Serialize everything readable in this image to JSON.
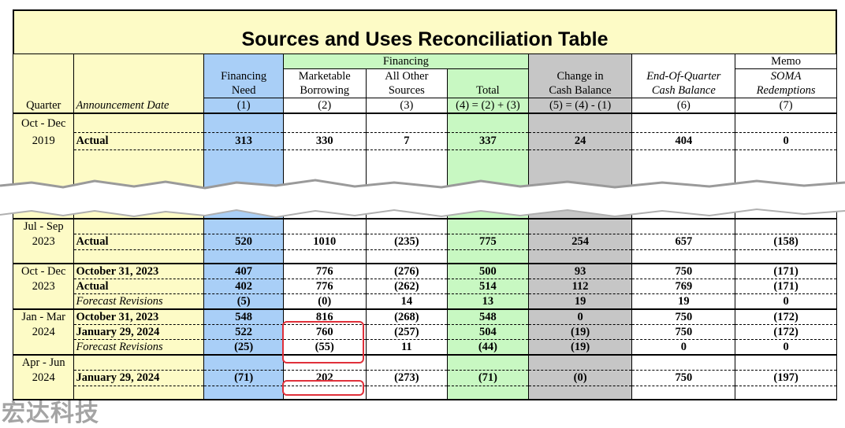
{
  "title": "Sources and Uses Reconciliation Table",
  "groups": {
    "financing": "Financing",
    "memo": "Memo"
  },
  "columns": {
    "quarter": "Quarter",
    "date": "Announcement Date",
    "c1": [
      "Financing",
      "Need",
      "(1)"
    ],
    "c2": [
      "Marketable",
      "Borrowing",
      "(2)"
    ],
    "c3": [
      "All Other",
      "Sources",
      "(3)"
    ],
    "c4": [
      "",
      "Total",
      "(4) = (2) + (3)"
    ],
    "c5": [
      "Change in",
      "Cash Balance",
      "(5) = (4) - (1)"
    ],
    "c6": [
      "End-Of-Quarter",
      "Cash Balance",
      "(6)"
    ],
    "c7": [
      "SOMA",
      "Redemptions",
      "(7)"
    ]
  },
  "rows": {
    "oct2019": {
      "q1": "Oct - Dec",
      "q2": "2019",
      "date": "Actual",
      "v": [
        "313",
        "330",
        "7",
        "337",
        "24",
        "404",
        "0"
      ]
    },
    "jul2023": {
      "q1": "Jul - Sep",
      "q2": "2023",
      "date": "Actual",
      "v": [
        "520",
        "1010",
        "(235)",
        "775",
        "254",
        "657",
        "(158)"
      ]
    },
    "oct2023": {
      "q1": "Oct - Dec",
      "q2": "2023",
      "r1": {
        "date": "October 31, 2023",
        "v": [
          "407",
          "776",
          "(276)",
          "500",
          "93",
          "750",
          "(171)"
        ]
      },
      "r2": {
        "date": "Actual",
        "v": [
          "402",
          "776",
          "(262)",
          "514",
          "112",
          "769",
          "(171)"
        ]
      },
      "r3": {
        "date": "Forecast Revisions",
        "v": [
          "(5)",
          "(0)",
          "14",
          "13",
          "19",
          "19",
          "0"
        ]
      }
    },
    "jan2024": {
      "q1": "Jan - Mar",
      "q2": "2024",
      "r1": {
        "date": "October 31, 2023",
        "v": [
          "548",
          "816",
          "(268)",
          "548",
          "0",
          "750",
          "(172)"
        ]
      },
      "r2": {
        "date": "January 29, 2024",
        "v": [
          "522",
          "760",
          "(257)",
          "504",
          "(19)",
          "750",
          "(172)"
        ]
      },
      "r3": {
        "date": "Forecast Revisions",
        "v": [
          "(25)",
          "(55)",
          "11",
          "(44)",
          "(19)",
          "0",
          "0"
        ]
      }
    },
    "apr2024": {
      "q1": "Apr - Jun",
      "q2": "2024",
      "date": "January 29, 2024",
      "v": [
        "(71)",
        "202",
        "(273)",
        "(71)",
        "(0)",
        "750",
        "(197)"
      ]
    }
  },
  "watermark": "宏达科技",
  "colors": {
    "header_yellow": "#fdfbc6",
    "need_blue": "#a9cff7",
    "total_green": "#c8f8c2",
    "cash_gray": "#c6c6c6",
    "highlight_red": "#e0303a"
  }
}
